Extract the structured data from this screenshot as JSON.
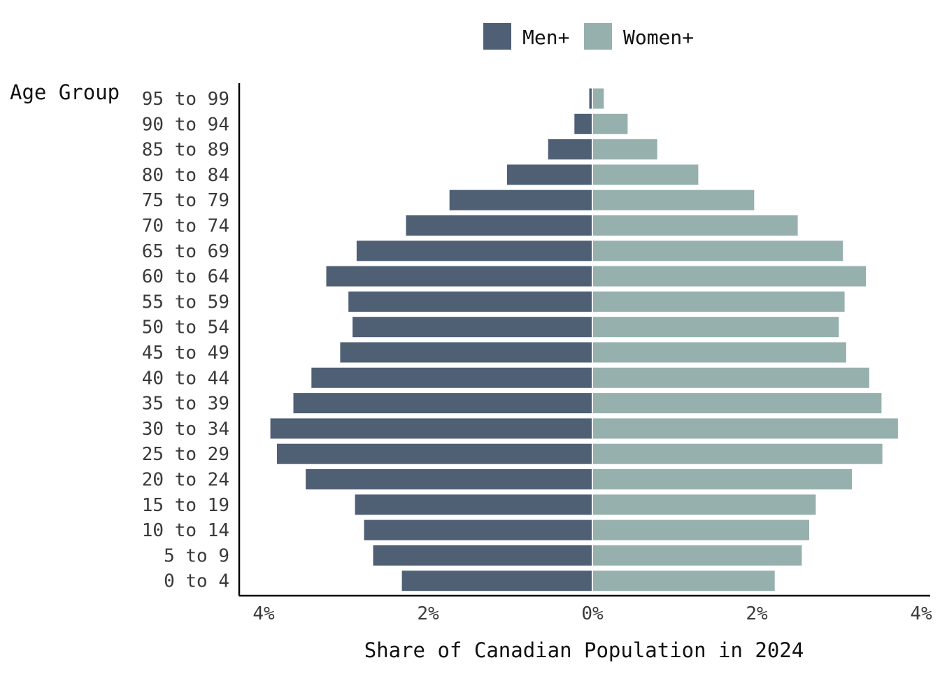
{
  "chart_data": {
    "type": "bar",
    "orientation": "horizontal-diverging",
    "title": "",
    "xlabel": "Share of Canadian Population in 2024",
    "ylabel": "Age Group",
    "categories": [
      "0 to 4",
      "5 to 9",
      "10 to 14",
      "15 to 19",
      "20 to 24",
      "25 to 29",
      "30 to 34",
      "35 to 39",
      "40 to 44",
      "45 to 49",
      "50 to 54",
      "55 to 59",
      "60 to 64",
      "65 to 69",
      "70 to 74",
      "75 to 79",
      "80 to 84",
      "85 to 89",
      "90 to 94",
      "95 to 99"
    ],
    "series": [
      {
        "name": "Men+",
        "color": "#4f5f74",
        "side": "left",
        "values": [
          2.31,
          2.66,
          2.77,
          2.88,
          3.48,
          3.83,
          3.91,
          3.63,
          3.41,
          3.06,
          2.91,
          2.96,
          3.23,
          2.86,
          2.26,
          1.73,
          1.03,
          0.53,
          0.21,
          0.03
        ]
      },
      {
        "name": "Women+",
        "color": "#96b0ae",
        "side": "right",
        "values": [
          2.21,
          2.54,
          2.63,
          2.71,
          3.15,
          3.52,
          3.71,
          3.51,
          3.36,
          3.08,
          2.99,
          3.06,
          3.32,
          3.04,
          2.49,
          1.96,
          1.28,
          0.78,
          0.42,
          0.13
        ]
      }
    ],
    "xlim": [
      -4,
      4
    ],
    "x_ticks": [
      -4,
      -2,
      0,
      2,
      4
    ],
    "x_tick_labels": [
      "4%",
      "2%",
      "0%",
      "2%",
      "4%"
    ],
    "legend_position": "top",
    "grid": false
  }
}
